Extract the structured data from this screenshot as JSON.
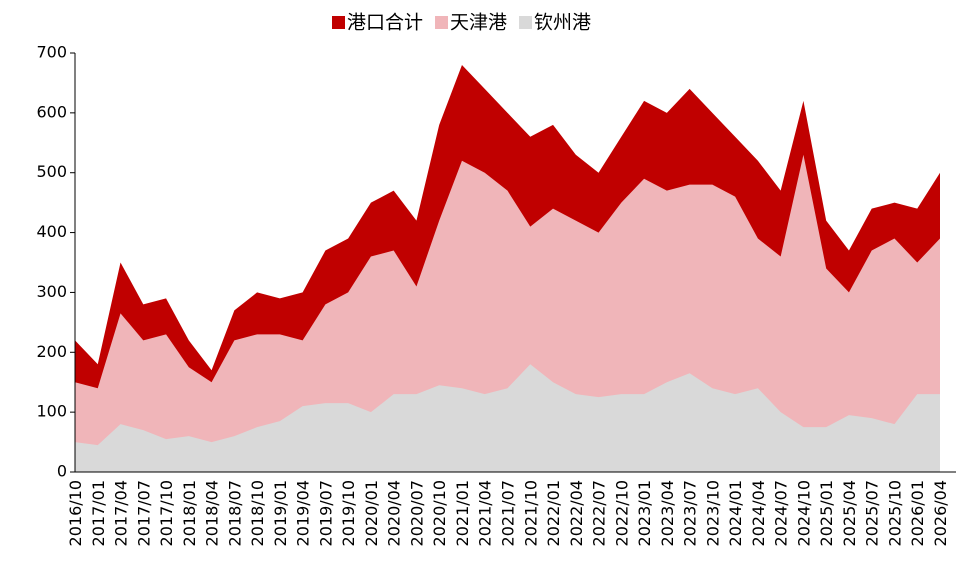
{
  "chart_data": {
    "type": "area",
    "categories": [
      "2016/10",
      "2017/01",
      "2017/04",
      "2017/07",
      "2017/10",
      "2018/01",
      "2018/04",
      "2018/07",
      "2018/10",
      "2019/01",
      "2019/04",
      "2019/07",
      "2019/10",
      "2020/01",
      "2020/04",
      "2020/07",
      "2020/10",
      "2021/01",
      "2021/04",
      "2021/07",
      "2021/10",
      "2022/01",
      "2022/04",
      "2022/07",
      "2022/10",
      "2023/01",
      "2023/04",
      "2023/07",
      "2023/10",
      "2024/01",
      "2024/04",
      "2024/07",
      "2024/10",
      "2025/01",
      "2025/04",
      "2025/07",
      "2025/10",
      "2026/01",
      "2026/04"
    ],
    "series": [
      {
        "name": "港口合计",
        "color": "#c00000",
        "values": [
          220,
          180,
          350,
          280,
          290,
          220,
          170,
          270,
          300,
          290,
          300,
          370,
          390,
          450,
          470,
          420,
          580,
          680,
          640,
          600,
          560,
          580,
          530,
          500,
          560,
          620,
          600,
          640,
          600,
          560,
          520,
          470,
          620,
          420,
          370,
          440,
          450,
          440,
          500
        ]
      },
      {
        "name": "天津港",
        "color": "#f0b5b9",
        "values": [
          150,
          140,
          265,
          220,
          230,
          175,
          150,
          220,
          230,
          230,
          220,
          280,
          300,
          360,
          370,
          310,
          420,
          520,
          500,
          470,
          410,
          440,
          420,
          400,
          450,
          490,
          470,
          480,
          480,
          460,
          390,
          360,
          530,
          340,
          300,
          370,
          390,
          350,
          390
        ]
      },
      {
        "name": "钦州港",
        "color": "#d9d9d9",
        "values": [
          50,
          45,
          80,
          70,
          55,
          60,
          50,
          60,
          75,
          85,
          110,
          115,
          115,
          100,
          130,
          130,
          145,
          140,
          130,
          140,
          180,
          150,
          130,
          125,
          130,
          130,
          150,
          165,
          140,
          130,
          140,
          100,
          75,
          75,
          95,
          90,
          80,
          130,
          130
        ]
      }
    ],
    "ylim": [
      0,
      700
    ],
    "yticks": [
      0,
      100,
      200,
      300,
      400,
      500,
      600,
      700
    ],
    "legend": "top"
  }
}
